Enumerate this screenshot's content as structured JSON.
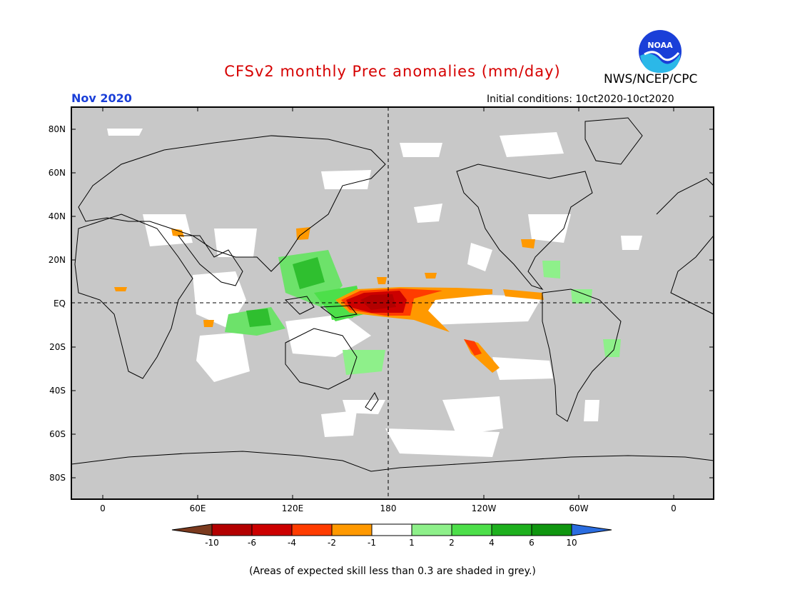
{
  "header": {
    "title": "CFSv2 monthly Prec anomalies (mm/day)",
    "org": "NWS/NCEP/CPC",
    "logo_text": "NOAA",
    "month": "Nov 2020",
    "initial_conditions": "Initial conditions: 10ct2020-10ct2020"
  },
  "map": {
    "lat_labels": [
      "80N",
      "60N",
      "40N",
      "20N",
      "EQ",
      "20S",
      "40S",
      "60S",
      "80S"
    ],
    "lon_labels": [
      "0",
      "60E",
      "120E",
      "180",
      "120W",
      "60W",
      "0"
    ]
  },
  "colorbar": {
    "labels": [
      "-10",
      "-6",
      "-4",
      "-2",
      "-1",
      "1",
      "2",
      "4",
      "6",
      "10"
    ],
    "colors": [
      "#7b3a1e",
      "#b30000",
      "#cc0000",
      "#ff3c00",
      "#ff9900",
      "#ffffff",
      "#8ef08a",
      "#4ddf4a",
      "#1eb01e",
      "#109610",
      "#2b6de0"
    ]
  },
  "footnote": "(Areas of expected skill less than 0.3 are shaded in grey.)"
}
